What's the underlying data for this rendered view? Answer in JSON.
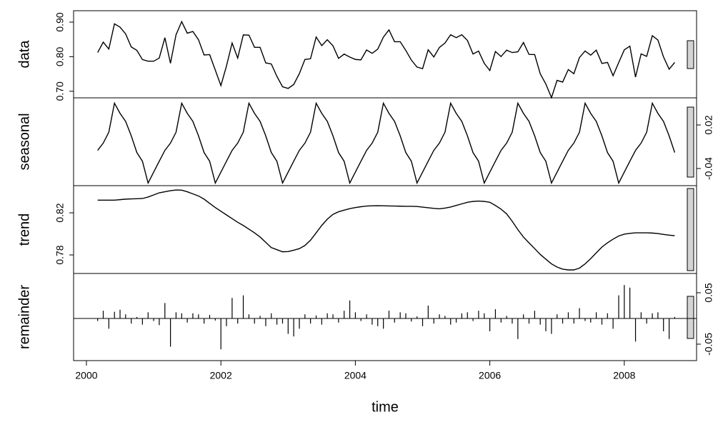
{
  "chart_data": [
    {
      "type": "line",
      "ylabel": "data",
      "x": [
        2000.167,
        2000.25,
        2000.333,
        2000.417,
        2000.5,
        2000.583,
        2000.667,
        2000.75,
        2000.833,
        2000.917,
        2001,
        2001.083,
        2001.167,
        2001.25,
        2001.333,
        2001.417,
        2001.5,
        2001.583,
        2001.667,
        2001.75,
        2001.833,
        2001.917,
        2002,
        2002.083,
        2002.167,
        2002.25,
        2002.333,
        2002.417,
        2002.5,
        2002.583,
        2002.667,
        2002.75,
        2002.833,
        2002.917,
        2003,
        2003.083,
        2003.167,
        2003.25,
        2003.333,
        2003.417,
        2003.5,
        2003.583,
        2003.667,
        2003.75,
        2003.833,
        2003.917,
        2004,
        2004.083,
        2004.167,
        2004.25,
        2004.333,
        2004.417,
        2004.5,
        2004.583,
        2004.667,
        2004.75,
        2004.833,
        2004.917,
        2005,
        2005.083,
        2005.167,
        2005.25,
        2005.333,
        2005.417,
        2005.5,
        2005.583,
        2005.667,
        2005.75,
        2005.833,
        2005.917,
        2006,
        2006.083,
        2006.167,
        2006.25,
        2006.333,
        2006.417,
        2006.5,
        2006.583,
        2006.667,
        2006.75,
        2006.833,
        2006.917,
        2007,
        2007.083,
        2007.167,
        2007.25,
        2007.333,
        2007.417,
        2007.5,
        2007.583,
        2007.667,
        2007.75,
        2007.833,
        2007.917,
        2008,
        2008.083,
        2008.167,
        2008.25,
        2008.333,
        2008.417,
        2008.5,
        2008.583,
        2008.667,
        2008.75
      ],
      "values": [
        0.812,
        0.842,
        0.822,
        0.895,
        0.8855,
        0.866,
        0.8282,
        0.8184,
        0.7916,
        0.787,
        0.787,
        0.796,
        0.855,
        0.781,
        0.8637,
        0.9015,
        0.868,
        0.873,
        0.849,
        0.805,
        0.806,
        0.761,
        0.7165,
        0.773,
        0.8395,
        0.796,
        0.863,
        0.8625,
        0.827,
        0.827,
        0.782,
        0.779,
        0.743,
        0.713,
        0.7082,
        0.7195,
        0.751,
        0.792,
        0.794,
        0.857,
        0.832,
        0.849,
        0.8315,
        0.795,
        0.8075,
        0.799,
        0.792,
        0.7908,
        0.8194,
        0.8097,
        0.8218,
        0.8567,
        0.8775,
        0.8434,
        0.8433,
        0.8182,
        0.7902,
        0.77,
        0.7654,
        0.8198,
        0.7992,
        0.8268,
        0.8395,
        0.8635,
        0.855,
        0.8635,
        0.847,
        0.8078,
        0.8162,
        0.7808,
        0.76,
        0.815,
        0.8005,
        0.819,
        0.812,
        0.814,
        0.841,
        0.8065,
        0.806,
        0.7505,
        0.721,
        0.6815,
        0.7315,
        0.7265,
        0.7628,
        0.7508,
        0.7975,
        0.8165,
        0.8045,
        0.819,
        0.7805,
        0.7835,
        0.745,
        0.783,
        0.8197,
        0.8305,
        0.741,
        0.808,
        0.801,
        0.8608,
        0.8483,
        0.7995,
        0.7638,
        0.7833
      ],
      "xlim": [
        1999.809,
        2009.075
      ],
      "ylim": [
        0.681,
        0.933
      ],
      "yticks": [
        {
          "value": 0.7,
          "label": "0.70"
        },
        {
          "value": 0.8,
          "label": "0.80"
        },
        {
          "value": 0.9,
          "label": "0.90"
        }
      ]
    },
    {
      "type": "line",
      "ylabel": "seasonal",
      "x": [
        2000.167,
        2000.25,
        2000.333,
        2000.417,
        2000.5,
        2000.583,
        2000.667,
        2000.75,
        2000.833,
        2000.917,
        2001,
        2001.083,
        2001.167,
        2001.25,
        2001.333,
        2001.417,
        2001.5,
        2001.583,
        2001.667,
        2001.75,
        2001.833,
        2001.917,
        2002,
        2002.083,
        2002.167,
        2002.25,
        2002.333,
        2002.417,
        2002.5,
        2002.583,
        2002.667,
        2002.75,
        2002.833,
        2002.917,
        2003,
        2003.083,
        2003.167,
        2003.25,
        2003.333,
        2003.417,
        2003.5,
        2003.583,
        2003.667,
        2003.75,
        2003.833,
        2003.917,
        2004,
        2004.083,
        2004.167,
        2004.25,
        2004.333,
        2004.417,
        2004.5,
        2004.583,
        2004.667,
        2004.75,
        2004.833,
        2004.917,
        2005,
        2005.083,
        2005.167,
        2005.25,
        2005.333,
        2005.417,
        2005.5,
        2005.583,
        2005.667,
        2005.75,
        2005.833,
        2005.917,
        2006,
        2006.083,
        2006.167,
        2006.25,
        2006.333,
        2006.417,
        2006.5,
        2006.583,
        2006.667,
        2006.75,
        2006.833,
        2006.917,
        2007,
        2007.083,
        2007.167,
        2007.25,
        2007.333,
        2007.417,
        2007.5,
        2007.583,
        2007.667,
        2007.75,
        2007.833,
        2007.917,
        2008,
        2008.083,
        2008.167,
        2008.25,
        2008.333,
        2008.417,
        2008.5,
        2008.583,
        2008.667,
        2008.75
      ],
      "values": [
        -0.015,
        -0.005,
        0.01,
        0.05,
        0.036,
        0.025,
        0.005,
        -0.018,
        -0.03,
        -0.06,
        -0.045,
        -0.03,
        -0.015,
        -0.005,
        0.01,
        0.05,
        0.036,
        0.025,
        0.005,
        -0.018,
        -0.03,
        -0.06,
        -0.045,
        -0.03,
        -0.015,
        -0.005,
        0.01,
        0.05,
        0.036,
        0.025,
        0.005,
        -0.018,
        -0.03,
        -0.06,
        -0.045,
        -0.03,
        -0.015,
        -0.005,
        0.01,
        0.05,
        0.036,
        0.025,
        0.005,
        -0.018,
        -0.03,
        -0.06,
        -0.045,
        -0.03,
        -0.015,
        -0.005,
        0.01,
        0.05,
        0.036,
        0.025,
        0.005,
        -0.018,
        -0.03,
        -0.06,
        -0.045,
        -0.03,
        -0.015,
        -0.005,
        0.01,
        0.05,
        0.036,
        0.025,
        0.005,
        -0.018,
        -0.03,
        -0.06,
        -0.045,
        -0.03,
        -0.015,
        -0.005,
        0.01,
        0.05,
        0.036,
        0.025,
        0.005,
        -0.018,
        -0.03,
        -0.06,
        -0.045,
        -0.03,
        -0.015,
        -0.005,
        0.01,
        0.05,
        0.036,
        0.025,
        0.005,
        -0.018,
        -0.03,
        -0.06,
        -0.045,
        -0.03,
        -0.015,
        -0.005,
        0.01,
        0.05,
        0.036,
        0.025,
        0.005,
        -0.018
      ],
      "xlim": [
        1999.809,
        2009.075
      ],
      "ylim": [
        -0.0636,
        0.0574
      ],
      "yticks": [
        -0.04,
        0.02
      ]
    },
    {
      "type": "line",
      "ylabel": "trend",
      "x": [
        2000.167,
        2000.25,
        2000.333,
        2000.417,
        2000.5,
        2000.583,
        2000.667,
        2000.75,
        2000.833,
        2000.917,
        2001,
        2001.083,
        2001.167,
        2001.25,
        2001.333,
        2001.417,
        2001.5,
        2001.583,
        2001.667,
        2001.75,
        2001.833,
        2001.917,
        2002,
        2002.083,
        2002.167,
        2002.25,
        2002.333,
        2002.417,
        2002.5,
        2002.583,
        2002.667,
        2002.75,
        2002.833,
        2002.917,
        2003,
        2003.083,
        2003.167,
        2003.25,
        2003.333,
        2003.417,
        2003.5,
        2003.583,
        2003.667,
        2003.75,
        2003.833,
        2003.917,
        2004,
        2004.083,
        2004.167,
        2004.25,
        2004.333,
        2004.417,
        2004.5,
        2004.583,
        2004.667,
        2004.75,
        2004.833,
        2004.917,
        2005,
        2005.083,
        2005.167,
        2005.25,
        2005.333,
        2005.417,
        2005.5,
        2005.583,
        2005.667,
        2005.75,
        2005.833,
        2005.917,
        2006,
        2006.083,
        2006.167,
        2006.25,
        2006.333,
        2006.417,
        2006.5,
        2006.583,
        2006.667,
        2006.75,
        2006.833,
        2006.917,
        2007,
        2007.083,
        2007.167,
        2007.25,
        2007.333,
        2007.417,
        2007.5,
        2007.583,
        2007.667,
        2007.75,
        2007.833,
        2007.917,
        2008,
        2008.083,
        2008.167,
        2008.25,
        2008.333,
        2008.417,
        2008.5,
        2008.583,
        2008.667,
        2008.75
      ],
      "values": [
        0.832,
        0.832,
        0.832,
        0.832,
        0.8325,
        0.833,
        0.8332,
        0.8334,
        0.8336,
        0.835,
        0.837,
        0.839,
        0.84,
        0.841,
        0.8417,
        0.8415,
        0.84,
        0.838,
        0.836,
        0.833,
        0.829,
        0.825,
        0.8215,
        0.818,
        0.8145,
        0.811,
        0.808,
        0.8045,
        0.801,
        0.797,
        0.792,
        0.787,
        0.785,
        0.783,
        0.7832,
        0.7845,
        0.786,
        0.789,
        0.794,
        0.801,
        0.808,
        0.814,
        0.8185,
        0.821,
        0.8225,
        0.824,
        0.825,
        0.8258,
        0.8264,
        0.8267,
        0.8268,
        0.8267,
        0.8265,
        0.8264,
        0.8263,
        0.8262,
        0.8262,
        0.826,
        0.8254,
        0.8248,
        0.8242,
        0.8238,
        0.8245,
        0.8255,
        0.827,
        0.8285,
        0.83,
        0.8308,
        0.8312,
        0.8308,
        0.83,
        0.827,
        0.8235,
        0.819,
        0.812,
        0.804,
        0.797,
        0.7915,
        0.786,
        0.7805,
        0.776,
        0.7715,
        0.7685,
        0.7665,
        0.7658,
        0.7658,
        0.7675,
        0.7715,
        0.7765,
        0.782,
        0.7875,
        0.7915,
        0.795,
        0.798,
        0.7997,
        0.8005,
        0.801,
        0.801,
        0.801,
        0.8008,
        0.8003,
        0.7995,
        0.7988,
        0.7983
      ],
      "xlim": [
        1999.809,
        2009.075
      ],
      "ylim": [
        0.7624,
        0.8458
      ],
      "yticks": [
        0.78,
        0.82
      ]
    },
    {
      "type": "bar",
      "ylabel": "remainder",
      "xlabel": "time",
      "x": [
        2000.167,
        2000.25,
        2000.333,
        2000.417,
        2000.5,
        2000.583,
        2000.667,
        2000.75,
        2000.833,
        2000.917,
        2001,
        2001.083,
        2001.167,
        2001.25,
        2001.333,
        2001.417,
        2001.5,
        2001.583,
        2001.667,
        2001.75,
        2001.833,
        2001.917,
        2002,
        2002.083,
        2002.167,
        2002.25,
        2002.333,
        2002.417,
        2002.5,
        2002.583,
        2002.667,
        2002.75,
        2002.833,
        2002.917,
        2003,
        2003.083,
        2003.167,
        2003.25,
        2003.333,
        2003.417,
        2003.5,
        2003.583,
        2003.667,
        2003.75,
        2003.833,
        2003.917,
        2004,
        2004.083,
        2004.167,
        2004.25,
        2004.333,
        2004.417,
        2004.5,
        2004.583,
        2004.667,
        2004.75,
        2004.833,
        2004.917,
        2005,
        2005.083,
        2005.167,
        2005.25,
        2005.333,
        2005.417,
        2005.5,
        2005.583,
        2005.667,
        2005.75,
        2005.833,
        2005.917,
        2006,
        2006.083,
        2006.167,
        2006.25,
        2006.333,
        2006.417,
        2006.5,
        2006.583,
        2006.667,
        2006.75,
        2006.833,
        2006.917,
        2007,
        2007.083,
        2007.167,
        2007.25,
        2007.333,
        2007.417,
        2007.5,
        2007.583,
        2007.667,
        2007.75,
        2007.833,
        2007.917,
        2008,
        2008.083,
        2008.167,
        2008.25,
        2008.333,
        2008.417,
        2008.5,
        2008.583,
        2008.667,
        2008.75
      ],
      "values": [
        -0.005,
        0.015,
        -0.02,
        0.013,
        0.017,
        0.008,
        -0.01,
        0.003,
        -0.012,
        0.012,
        -0.005,
        -0.013,
        0.03,
        -0.055,
        0.012,
        0.01,
        -0.008,
        0.01,
        0.008,
        -0.01,
        0.007,
        -0.004,
        -0.06,
        -0.015,
        0.04,
        -0.01,
        0.045,
        0.008,
        -0.01,
        0.005,
        -0.015,
        0.01,
        -0.012,
        -0.01,
        -0.03,
        -0.035,
        -0.02,
        0.008,
        -0.01,
        0.006,
        -0.012,
        0.01,
        0.008,
        -0.008,
        0.015,
        0.035,
        0.012,
        -0.005,
        0.008,
        -0.012,
        -0.015,
        -0.02,
        0.015,
        -0.008,
        0.012,
        0.01,
        -0.006,
        0.004,
        -0.015,
        0.025,
        -0.01,
        0.008,
        0.005,
        -0.012,
        -0.008,
        0.01,
        0.012,
        -0.005,
        0.015,
        0.01,
        -0.025,
        0.018,
        -0.008,
        0.005,
        -0.01,
        -0.04,
        0.008,
        -0.01,
        0.015,
        -0.012,
        -0.025,
        -0.03,
        0.008,
        -0.01,
        0.012,
        -0.01,
        0.02,
        -0.005,
        -0.008,
        0.012,
        -0.012,
        0.01,
        -0.02,
        0.045,
        0.065,
        0.06,
        -0.045,
        0.012,
        -0.01,
        0.01,
        0.012,
        -0.025,
        -0.04,
        0.003
      ],
      "xlim": [
        1999.809,
        2009.075
      ],
      "ylim": [
        -0.082,
        0.0875
      ],
      "yticks": [
        -0.05,
        0.05
      ],
      "xticks": [
        2000,
        2002,
        2004,
        2006,
        2008
      ]
    }
  ]
}
